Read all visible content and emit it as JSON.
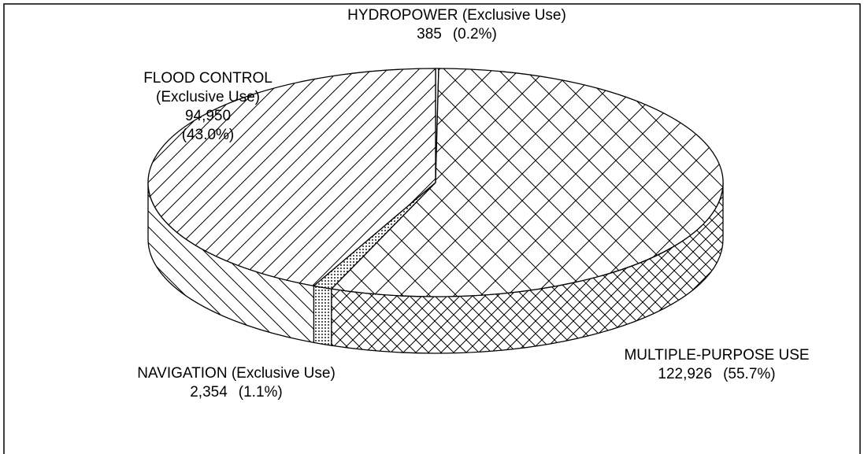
{
  "chart_data": {
    "type": "pie3d",
    "categories": [
      "HYDROPOWER (Exclusive Use)",
      "MULTIPLE-PURPOSE USE",
      "NAVIGATION (Exclusive Use)",
      "FLOOD CONTROL (Exclusive Use)"
    ],
    "values": [
      385,
      122926,
      2354,
      94950
    ],
    "value_labels": [
      "385",
      "122,926",
      "2,354",
      "94,950"
    ],
    "percents": [
      0.2,
      55.7,
      1.1,
      43.0
    ],
    "percent_labels": [
      "(0.2%)",
      "(55.7%)",
      "(1.1%)",
      "(43.0%)"
    ],
    "patterns": [
      "plain",
      "crosshatch",
      "dots",
      "diagonal"
    ]
  }
}
